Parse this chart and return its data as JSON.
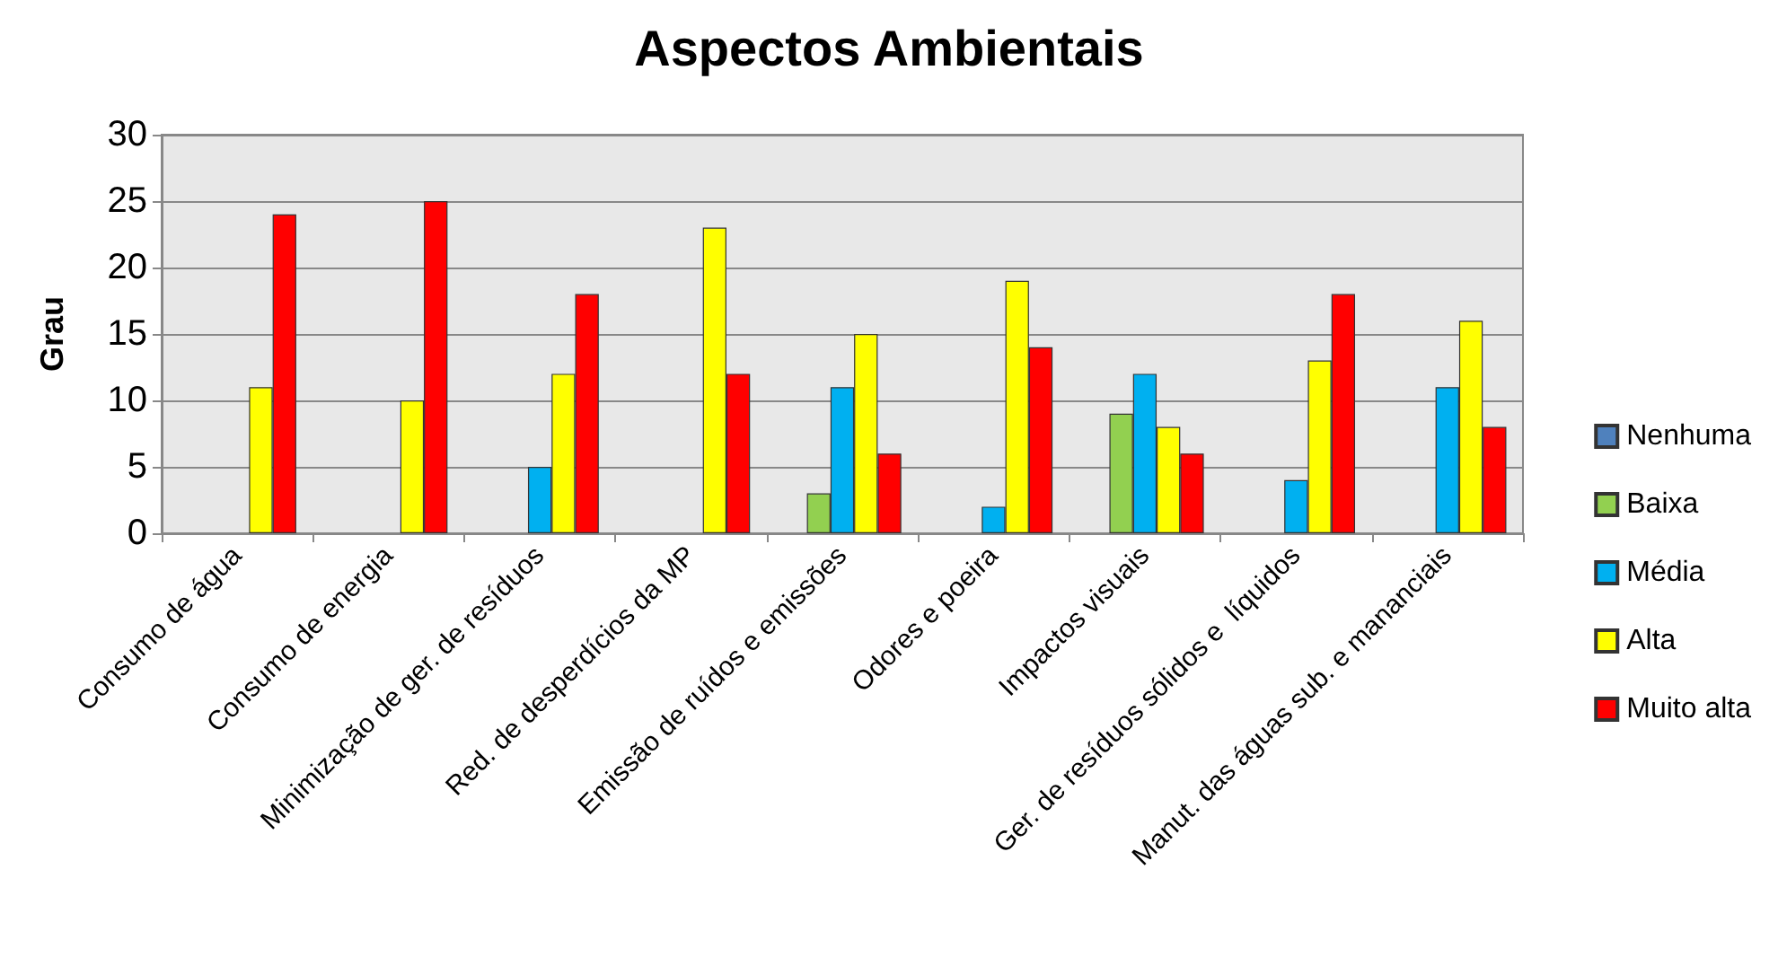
{
  "chart_data": {
    "type": "bar",
    "title": "Aspectos Ambientais",
    "ylabel": "Grau",
    "categories": [
      "Consumo de água",
      "Consumo de energia",
      "Minimização de ger. de resíduos",
      "Red. de desperdícios da MP",
      "Emissão de ruídos e emissões",
      "Odores e poeira",
      "Impactos visuais",
      "Ger. de resíduos sólidos e  líquidos",
      "Manut. das águas sub. e mananciais"
    ],
    "series": [
      {
        "name": "Nenhuma",
        "color": "#4f81bd",
        "values": [
          0,
          0,
          0,
          0,
          0,
          0,
          0,
          0,
          0
        ]
      },
      {
        "name": "Baixa",
        "color": "#92d050",
        "values": [
          0,
          0,
          0,
          0,
          3,
          0,
          9,
          0,
          0
        ]
      },
      {
        "name": "Média",
        "color": "#00b0f0",
        "values": [
          0,
          0,
          5,
          0,
          11,
          2,
          12,
          4,
          11
        ]
      },
      {
        "name": "Alta",
        "color": "#ffff00",
        "values": [
          11,
          10,
          12,
          23,
          15,
          19,
          8,
          13,
          16
        ]
      },
      {
        "name": "Muito alta",
        "color": "#ff0000",
        "values": [
          24,
          25,
          18,
          12,
          6,
          14,
          6,
          18,
          8
        ]
      }
    ],
    "ylim": [
      0,
      30
    ],
    "yticks": [
      0,
      5,
      10,
      15,
      20,
      25,
      30
    ],
    "grid": "y",
    "legend": "right"
  }
}
